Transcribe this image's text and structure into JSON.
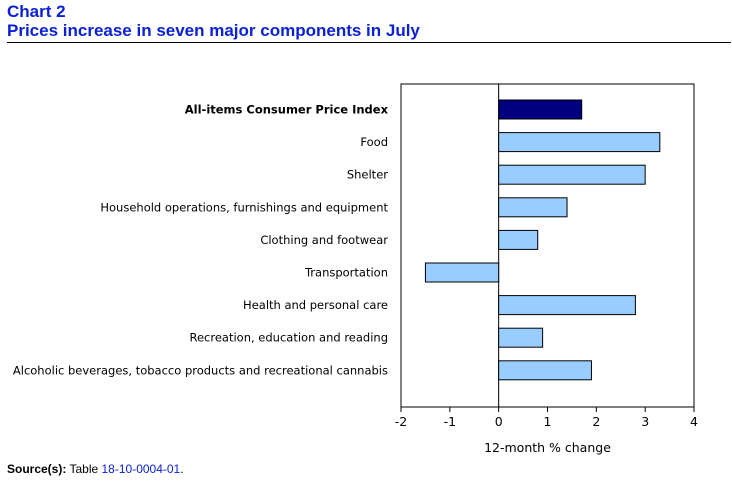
{
  "header": {
    "chart_number": "Chart 2",
    "title": "Prices increase in seven major components in July"
  },
  "source": {
    "label": "Source(s):",
    "text": "Table",
    "link_text": "18-10-0004-01",
    "suffix": "."
  },
  "colors": {
    "title": "#0b21d6",
    "highlight_bar": "#000080",
    "bar": "#99ccff",
    "bar_stroke": "#000000"
  },
  "chart_data": {
    "type": "bar",
    "orientation": "horizontal",
    "categories": [
      "All-items Consumer Price Index",
      "Food",
      "Shelter",
      "Household operations, furnishings and equipment",
      "Clothing and footwear",
      "Transportation",
      "Health and personal care",
      "Recreation, education and reading",
      "Alcoholic beverages, tobacco products and recreational cannabis"
    ],
    "values": [
      1.7,
      3.3,
      3.0,
      1.4,
      0.8,
      -1.5,
      2.8,
      0.9,
      1.9
    ],
    "highlight_index": 0,
    "xlabel": "12-month % change",
    "ylabel": "",
    "xlim": [
      -2,
      4
    ],
    "x_ticks": [
      "-2",
      "-1",
      "0",
      "1",
      "2",
      "3",
      "4"
    ],
    "grid": false,
    "legend": "none"
  }
}
